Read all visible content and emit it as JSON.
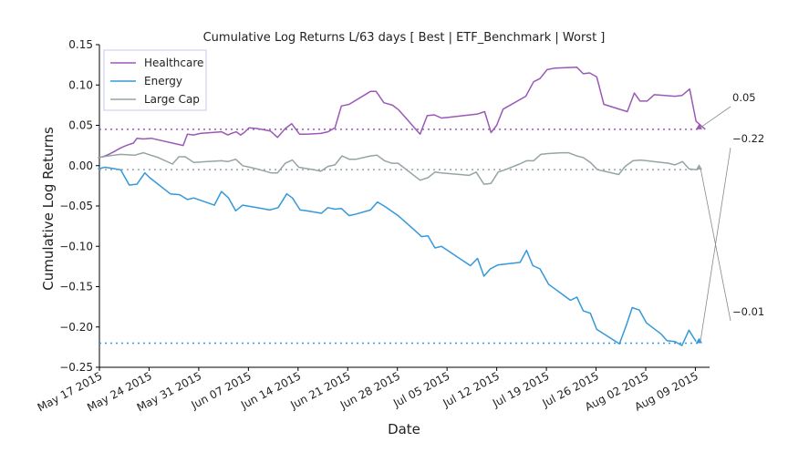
{
  "chart_data": {
    "type": "line",
    "title": "Cumulative Log Returns L/63 days [ Best | ETF_Benchmark | Worst ]",
    "xlabel": "Date",
    "ylabel": "Cumulative Log Returns",
    "ylim": [
      -0.25,
      0.15
    ],
    "yticks": [
      0.15,
      0.1,
      0.05,
      0.0,
      -0.05,
      -0.1,
      -0.15,
      -0.2,
      -0.25
    ],
    "ytick_labels": [
      "0.15",
      "0.10",
      "0.05",
      "0.00",
      "−0.05",
      "−0.10",
      "−0.15",
      "−0.20",
      "−0.25"
    ],
    "x_days_range": [
      0,
      86
    ],
    "x_ticks": [
      {
        "day": 0,
        "label": "May 17 2015"
      },
      {
        "day": 7,
        "label": "May 24 2015"
      },
      {
        "day": 14,
        "label": "May 31 2015"
      },
      {
        "day": 21,
        "label": "Jun 07 2015"
      },
      {
        "day": 28,
        "label": "Jun 14 2015"
      },
      {
        "day": 35,
        "label": "Jun 21 2015"
      },
      {
        "day": 42,
        "label": "Jun 28 2015"
      },
      {
        "day": 49,
        "label": "Jul 05 2015"
      },
      {
        "day": 56,
        "label": "Jul 12 2015"
      },
      {
        "day": 63,
        "label": "Jul 19 2015"
      },
      {
        "day": 70,
        "label": "Jul 26 2015"
      },
      {
        "day": 77,
        "label": "Aug 02 2015"
      },
      {
        "day": 84,
        "label": "Aug 09 2015"
      }
    ],
    "legend_position": "top-left",
    "series": [
      {
        "name": "Healthcare",
        "color": "#9b59b6",
        "final_value": 0.045,
        "annotation": "0.05",
        "points": [
          [
            -0.2,
            0.01
          ],
          [
            0.5,
            0.011
          ],
          [
            1.3,
            0.014
          ],
          [
            2.2,
            0.018
          ],
          [
            3.0,
            0.022
          ],
          [
            3.8,
            0.025
          ],
          [
            4.8,
            0.028
          ],
          [
            5.3,
            0.034
          ],
          [
            6.2,
            0.033
          ],
          [
            7.3,
            0.034
          ],
          [
            11.8,
            0.025
          ],
          [
            12.4,
            0.039
          ],
          [
            13.3,
            0.038
          ],
          [
            14.2,
            0.04
          ],
          [
            17.2,
            0.042
          ],
          [
            18.1,
            0.038
          ],
          [
            18.6,
            0.04
          ],
          [
            19.3,
            0.042
          ],
          [
            19.9,
            0.038
          ],
          [
            20.4,
            0.041
          ],
          [
            21.1,
            0.047
          ],
          [
            22.2,
            0.046
          ],
          [
            24.1,
            0.043
          ],
          [
            25.1,
            0.035
          ],
          [
            26.2,
            0.046
          ],
          [
            27.1,
            0.052
          ],
          [
            28.2,
            0.039
          ],
          [
            29.2,
            0.039
          ],
          [
            31.2,
            0.04
          ],
          [
            32.2,
            0.042
          ],
          [
            33.2,
            0.047
          ],
          [
            34.1,
            0.074
          ],
          [
            35.2,
            0.076
          ],
          [
            38.2,
            0.092
          ],
          [
            39.0,
            0.092
          ],
          [
            40.1,
            0.078
          ],
          [
            41.3,
            0.075
          ],
          [
            42.2,
            0.069
          ],
          [
            45.2,
            0.039
          ],
          [
            46.2,
            0.062
          ],
          [
            47.2,
            0.063
          ],
          [
            48.2,
            0.059
          ],
          [
            49.2,
            0.06
          ],
          [
            53.3,
            0.064
          ],
          [
            54.3,
            0.067
          ],
          [
            55.2,
            0.041
          ],
          [
            56.0,
            0.05
          ],
          [
            56.9,
            0.07
          ],
          [
            60.1,
            0.086
          ],
          [
            61.2,
            0.104
          ],
          [
            62.1,
            0.108
          ],
          [
            63.1,
            0.119
          ],
          [
            64.2,
            0.121
          ],
          [
            67.3,
            0.122
          ],
          [
            68.2,
            0.114
          ],
          [
            69.1,
            0.115
          ],
          [
            70.1,
            0.11
          ],
          [
            71.1,
            0.076
          ],
          [
            74.4,
            0.067
          ],
          [
            75.4,
            0.09
          ],
          [
            76.2,
            0.08
          ],
          [
            77.2,
            0.08
          ],
          [
            78.2,
            0.088
          ],
          [
            81.1,
            0.086
          ],
          [
            82.1,
            0.087
          ],
          [
            83.2,
            0.095
          ],
          [
            84.1,
            0.055
          ],
          [
            85.4,
            0.045
          ]
        ]
      },
      {
        "name": "Energy",
        "color": "#3498db",
        "final_value": -0.22,
        "annotation": "−0.22",
        "points": [
          [
            -0.2,
            -0.004
          ],
          [
            0.8,
            -0.002
          ],
          [
            1.5,
            -0.003
          ],
          [
            3.0,
            -0.005
          ],
          [
            4.2,
            -0.024
          ],
          [
            5.3,
            -0.023
          ],
          [
            6.4,
            -0.009
          ],
          [
            7.1,
            -0.015
          ],
          [
            10.0,
            -0.035
          ],
          [
            11.3,
            -0.036
          ],
          [
            12.4,
            -0.042
          ],
          [
            13.3,
            -0.04
          ],
          [
            16.2,
            -0.049
          ],
          [
            17.2,
            -0.032
          ],
          [
            18.2,
            -0.04
          ],
          [
            19.2,
            -0.056
          ],
          [
            20.2,
            -0.049
          ],
          [
            22.2,
            -0.052
          ],
          [
            24.0,
            -0.055
          ],
          [
            25.2,
            -0.052
          ],
          [
            26.4,
            -0.035
          ],
          [
            27.2,
            -0.04
          ],
          [
            28.3,
            -0.055
          ],
          [
            29.2,
            -0.056
          ],
          [
            31.3,
            -0.059
          ],
          [
            32.2,
            -0.052
          ],
          [
            33.2,
            -0.054
          ],
          [
            34.1,
            -0.053
          ],
          [
            35.2,
            -0.062
          ],
          [
            36.2,
            -0.06
          ],
          [
            38.2,
            -0.055
          ],
          [
            39.2,
            -0.045
          ],
          [
            40.3,
            -0.051
          ],
          [
            42.1,
            -0.062
          ],
          [
            44.3,
            -0.079
          ],
          [
            45.4,
            -0.088
          ],
          [
            46.3,
            -0.087
          ],
          [
            47.3,
            -0.102
          ],
          [
            48.2,
            -0.1
          ],
          [
            52.3,
            -0.124
          ],
          [
            53.3,
            -0.115
          ],
          [
            54.2,
            -0.137
          ],
          [
            55.1,
            -0.128
          ],
          [
            56.2,
            -0.123
          ],
          [
            59.3,
            -0.12
          ],
          [
            60.2,
            -0.105
          ],
          [
            61.1,
            -0.124
          ],
          [
            62.1,
            -0.128
          ],
          [
            63.3,
            -0.147
          ],
          [
            66.4,
            -0.167
          ],
          [
            67.3,
            -0.163
          ],
          [
            68.2,
            -0.18
          ],
          [
            69.2,
            -0.183
          ],
          [
            70.1,
            -0.203
          ],
          [
            73.3,
            -0.221
          ],
          [
            74.3,
            -0.197
          ],
          [
            75.1,
            -0.176
          ],
          [
            76.1,
            -0.179
          ],
          [
            77.1,
            -0.195
          ],
          [
            79.2,
            -0.209
          ],
          [
            80.0,
            -0.217
          ],
          [
            81.1,
            -0.218
          ],
          [
            82.1,
            -0.223
          ],
          [
            83.1,
            -0.204
          ],
          [
            84.1,
            -0.218
          ]
        ]
      },
      {
        "name": "Large Cap",
        "color": "#95a5a6",
        "final_value": -0.005,
        "annotation": "−0.01",
        "points": [
          [
            -0.2,
            0.01
          ],
          [
            1.2,
            0.012
          ],
          [
            3.0,
            0.014
          ],
          [
            5.0,
            0.013
          ],
          [
            6.2,
            0.016
          ],
          [
            7.2,
            0.013
          ],
          [
            8.3,
            0.01
          ],
          [
            10.3,
            0.002
          ],
          [
            11.2,
            0.011
          ],
          [
            12.1,
            0.011
          ],
          [
            13.3,
            0.004
          ],
          [
            15.2,
            0.005
          ],
          [
            17.2,
            0.006
          ],
          [
            18.1,
            0.005
          ],
          [
            19.2,
            0.008
          ],
          [
            20.2,
            0.0
          ],
          [
            21.2,
            -0.002
          ],
          [
            22.2,
            -0.004
          ],
          [
            24.2,
            -0.009
          ],
          [
            25.1,
            -0.009
          ],
          [
            26.2,
            0.003
          ],
          [
            27.2,
            0.007
          ],
          [
            28.1,
            -0.002
          ],
          [
            30.2,
            -0.005
          ],
          [
            31.2,
            -0.007
          ],
          [
            32.2,
            -0.001
          ],
          [
            33.2,
            0.001
          ],
          [
            34.2,
            0.012
          ],
          [
            35.2,
            0.008
          ],
          [
            36.2,
            0.008
          ],
          [
            38.2,
            0.012
          ],
          [
            39.1,
            0.013
          ],
          [
            40.2,
            0.006
          ],
          [
            41.2,
            0.003
          ],
          [
            42.1,
            0.003
          ],
          [
            45.2,
            -0.018
          ],
          [
            46.3,
            -0.015
          ],
          [
            47.3,
            -0.008
          ],
          [
            48.2,
            -0.009
          ],
          [
            52.1,
            -0.012
          ],
          [
            53.1,
            -0.008
          ],
          [
            54.2,
            -0.023
          ],
          [
            55.2,
            -0.022
          ],
          [
            56.2,
            -0.008
          ],
          [
            57.2,
            -0.005
          ],
          [
            59.2,
            0.002
          ],
          [
            60.2,
            0.006
          ],
          [
            61.2,
            0.006
          ],
          [
            62.2,
            0.014
          ],
          [
            63.2,
            0.015
          ],
          [
            65.1,
            0.016
          ],
          [
            66.1,
            0.016
          ],
          [
            67.3,
            0.012
          ],
          [
            68.2,
            0.01
          ],
          [
            69.2,
            0.004
          ],
          [
            70.2,
            -0.005
          ],
          [
            71.2,
            -0.007
          ],
          [
            73.2,
            -0.011
          ],
          [
            74.1,
            -0.001
          ],
          [
            75.2,
            0.006
          ],
          [
            76.2,
            0.007
          ],
          [
            77.2,
            0.006
          ],
          [
            78.1,
            0.005
          ],
          [
            80.2,
            0.003
          ],
          [
            81.1,
            0.001
          ],
          [
            82.2,
            0.005
          ],
          [
            83.1,
            -0.004
          ],
          [
            84.1,
            -0.005
          ]
        ]
      }
    ]
  }
}
